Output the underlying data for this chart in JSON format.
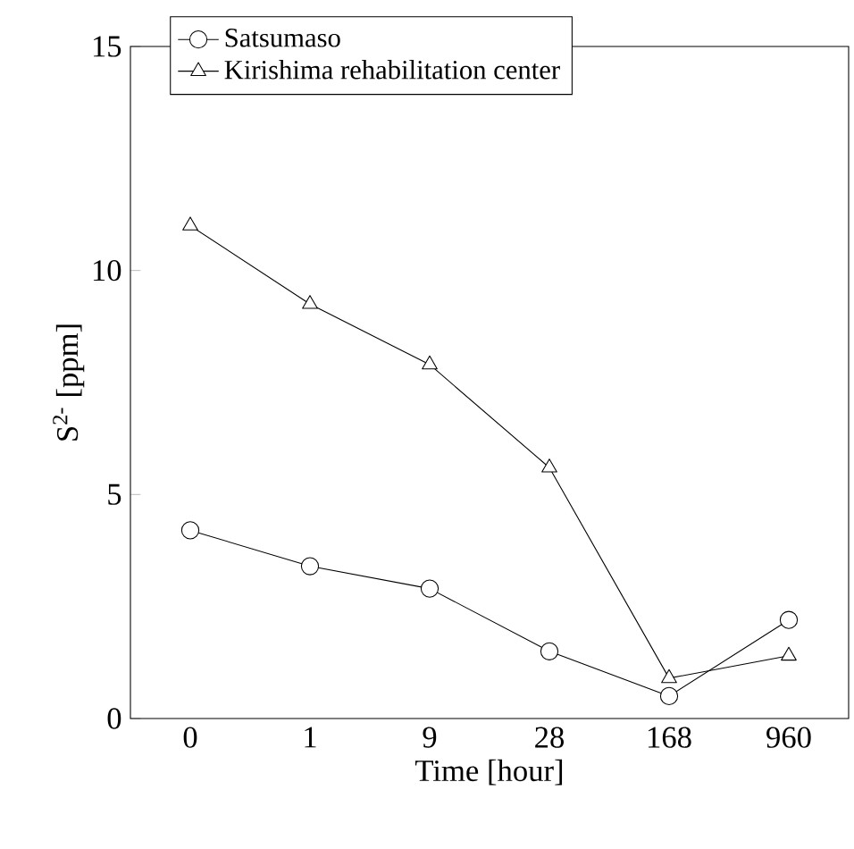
{
  "chart_data": {
    "type": "line",
    "xlabel": "Time [hour]",
    "ylabel": "S$^{2-}$ [ppm]",
    "categories": [
      "0",
      "1",
      "9",
      "28",
      "168",
      "960"
    ],
    "ylim": [
      0,
      15
    ],
    "yticks": [
      0,
      5,
      10,
      15
    ],
    "legend": "top left",
    "grid": false,
    "series": [
      {
        "name": "Satsumaso",
        "color": "#000000",
        "marker": "circle",
        "values": [
          4.2,
          3.4,
          2.9,
          1.5,
          0.5,
          2.2
        ]
      },
      {
        "name": "Kirishima rehabilitation center",
        "color": "#000000",
        "marker": "triangle",
        "values": [
          11.0,
          9.25,
          7.9,
          5.6,
          0.9,
          1.4
        ]
      }
    ]
  }
}
